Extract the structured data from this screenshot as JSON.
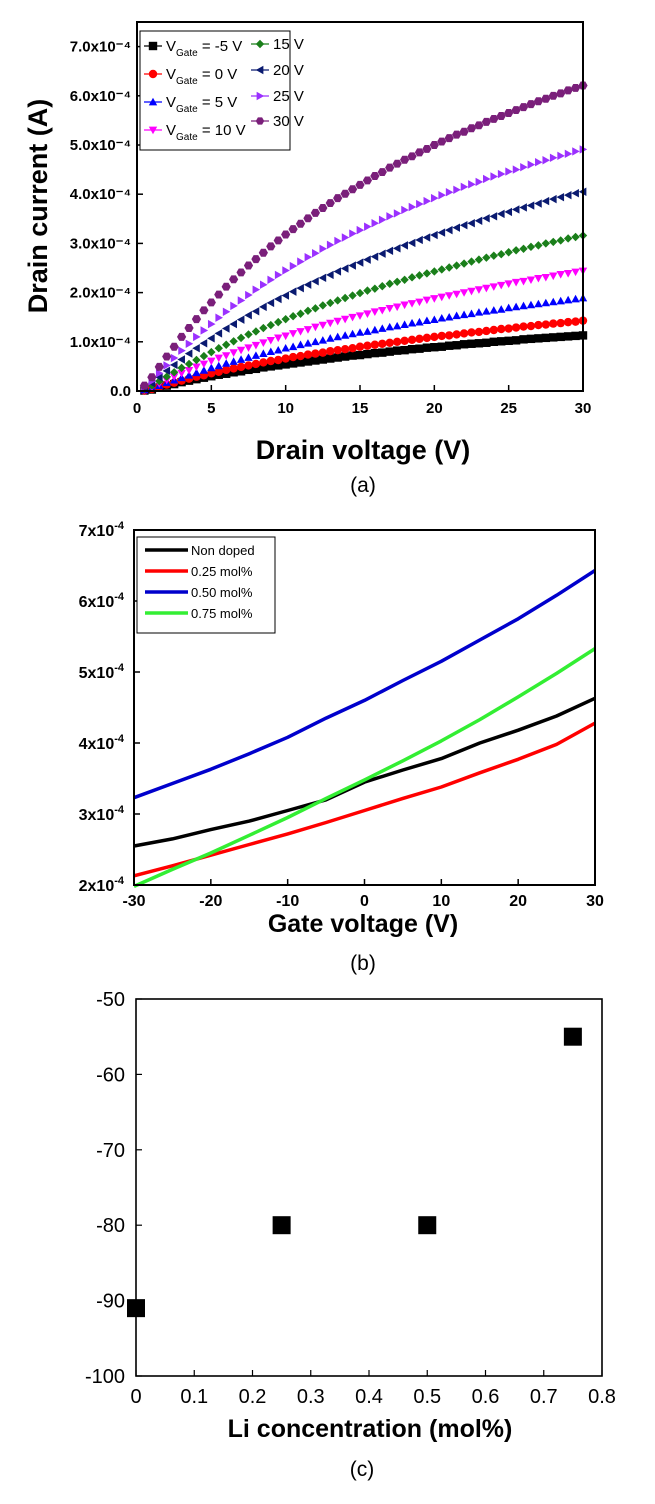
{
  "chart_data": [
    {
      "type": "scatter",
      "caption": "(a)",
      "xlabel": "Drain voltage (V)",
      "ylabel": "Drain current (A)",
      "xlim": [
        0,
        30
      ],
      "ylim": [
        0,
        0.00075
      ],
      "x_ticks": [
        "0",
        "5",
        "10",
        "15",
        "20",
        "25",
        "30"
      ],
      "y_ticks": [
        "0.0",
        "1.0x10⁻⁴",
        "2.0x10⁻⁴",
        "3.0x10⁻⁴",
        "4.0x10⁻⁴",
        "5.0x10⁻⁴",
        "6.0x10⁻⁴",
        "7.0x10⁻⁴"
      ],
      "legend_placement": "top-left",
      "x": [
        0.5,
        1,
        1.5,
        2,
        2.5,
        3,
        3.5,
        4,
        4.5,
        5,
        5.5,
        6,
        6.5,
        7,
        7.5,
        8,
        8.5,
        9,
        9.5,
        10,
        10.5,
        11,
        11.5,
        12,
        12.5,
        13,
        13.5,
        14,
        14.5,
        15,
        15.5,
        16,
        16.5,
        17,
        17.5,
        18,
        18.5,
        19,
        19.5,
        20,
        20.5,
        21,
        21.5,
        22,
        22.5,
        23,
        23.5,
        24,
        24.5,
        25,
        25.5,
        26,
        26.5,
        27,
        27.5,
        28,
        28.5,
        29,
        29.5,
        30
      ],
      "series": [
        {
          "name_main": "V",
          "name_sub": "Gate",
          "name_rest": " = -5 V",
          "color": "#000000",
          "marker": "square",
          "values": [
            1e-06,
            3e-06,
            7e-06,
            1.1e-05,
            1.4e-05,
            1.8e-05,
            2.1e-05,
            2.4e-05,
            2.7e-05,
            3e-05,
            3.3e-05,
            3.5e-05,
            3.8e-05,
            4e-05,
            4.3e-05,
            4.5e-05,
            4.8e-05,
            5e-05,
            5.2e-05,
            5.4e-05,
            5.6e-05,
            5.8e-05,
            6e-05,
            6.2e-05,
            6.4e-05,
            6.6e-05,
            6.8e-05,
            7e-05,
            7.2e-05,
            7.3e-05,
            7.5e-05,
            7.7e-05,
            7.8e-05,
            8e-05,
            8.2e-05,
            8.3e-05,
            8.5e-05,
            8.6e-05,
            8.8e-05,
            8.9e-05,
            9e-05,
            9.2e-05,
            9.3e-05,
            9.5e-05,
            9.6e-05,
            9.7e-05,
            9.8e-05,
            0.0001,
            0.000101,
            0.000102,
            0.000103,
            0.000105,
            0.000106,
            0.000107,
            0.000108,
            0.000109,
            0.00011,
            0.000111,
            0.000112,
            0.000113
          ]
        },
        {
          "name_main": "V",
          "name_sub": "Gate",
          "name_rest": " = 0 V",
          "color": "#ff0000",
          "marker": "circle",
          "values": [
            1e-06,
            4e-06,
            8e-06,
            1.3e-05,
            1.7e-05,
            2.1e-05,
            2.5e-05,
            2.9e-05,
            3.2e-05,
            3.6e-05,
            3.9e-05,
            4.3e-05,
            4.6e-05,
            4.9e-05,
            5.2e-05,
            5.5e-05,
            5.8e-05,
            6.1e-05,
            6.3e-05,
            6.6e-05,
            6.9e-05,
            7.1e-05,
            7.4e-05,
            7.6e-05,
            7.8e-05,
            8.1e-05,
            8.3e-05,
            8.5e-05,
            8.7e-05,
            9e-05,
            9.2e-05,
            9.4e-05,
            9.6e-05,
            9.8e-05,
            0.0001,
            0.000102,
            0.000104,
            0.000106,
            0.000108,
            0.00011,
            0.000112,
            0.000113,
            0.000115,
            0.000117,
            0.000119,
            0.00012,
            0.000122,
            0.000124,
            0.000126,
            0.000127,
            0.000129,
            0.000131,
            0.000132,
            0.000134,
            0.000135,
            0.000137,
            0.000138,
            0.00014,
            0.000141,
            0.000143
          ]
        },
        {
          "name_main": "V",
          "name_sub": "Gate",
          "name_rest": " = 5 V",
          "color": "#0000ff",
          "marker": "triangle-up",
          "values": [
            2e-06,
            6e-06,
            1.1e-05,
            1.7e-05,
            2.2e-05,
            2.7e-05,
            3.2e-05,
            3.7e-05,
            4.2e-05,
            4.7e-05,
            5.1e-05,
            5.6e-05,
            6e-05,
            6.4e-05,
            6.8e-05,
            7.2e-05,
            7.6e-05,
            8e-05,
            8.3e-05,
            8.7e-05,
            9e-05,
            9.4e-05,
            9.7e-05,
            0.0001,
            0.000103,
            0.000107,
            0.00011,
            0.000113,
            0.000116,
            0.000119,
            0.000121,
            0.000124,
            0.000127,
            0.00013,
            0.000132,
            0.000135,
            0.000138,
            0.00014,
            0.000143,
            0.000145,
            0.000148,
            0.00015,
            0.000153,
            0.000155,
            0.000157,
            0.00016,
            0.000162,
            0.000164,
            0.000166,
            0.000169,
            0.000171,
            0.000173,
            0.000175,
            0.000177,
            0.000179,
            0.000181,
            0.000183,
            0.000185,
            0.000187,
            0.000189
          ]
        },
        {
          "name_main": "V",
          "name_sub": "Gate",
          "name_rest": " = 10 V",
          "color": "#ff00ff",
          "marker": "triangle-down",
          "values": [
            3e-06,
            8e-06,
            1.5e-05,
            2.2e-05,
            2.9e-05,
            3.6e-05,
            4.2e-05,
            4.9e-05,
            5.5e-05,
            6.1e-05,
            6.7e-05,
            7.2e-05,
            7.8e-05,
            8.3e-05,
            8.8e-05,
            9.3e-05,
            9.8e-05,
            0.000103,
            0.000108,
            0.000112,
            0.000117,
            0.000121,
            0.000125,
            0.00013,
            0.000134,
            0.000138,
            0.000142,
            0.000146,
            0.00015,
            0.000153,
            0.000157,
            0.000161,
            0.000164,
            0.000168,
            0.000171,
            0.000175,
            0.000178,
            0.000181,
            0.000185,
            0.000188,
            0.000191,
            0.000194,
            0.000197,
            0.0002,
            0.000203,
            0.000206,
            0.000209,
            0.000212,
            0.000215,
            0.000218,
            0.000221,
            0.000223,
            0.000226,
            0.000229,
            0.000231,
            0.000234,
            0.000237,
            0.000239,
            0.000242,
            0.000244
          ]
        },
        {
          "name_main": "15 V",
          "name_sub": "",
          "name_rest": "",
          "color": "#1a7f1a",
          "marker": "diamond",
          "values": [
            4e-06,
            1.1e-05,
            2e-05,
            2.9e-05,
            3.8e-05,
            4.7e-05,
            5.5e-05,
            6.3e-05,
            7.1e-05,
            7.9e-05,
            8.7e-05,
            9.4e-05,
            0.000101,
            0.000108,
            0.000115,
            0.000121,
            0.000128,
            0.000134,
            0.00014,
            0.000146,
            0.000152,
            0.000157,
            0.000163,
            0.000168,
            0.000174,
            0.000179,
            0.000184,
            0.000189,
            0.000194,
            0.000199,
            0.000204,
            0.000208,
            0.000213,
            0.000218,
            0.000222,
            0.000226,
            0.000231,
            0.000235,
            0.000239,
            0.000243,
            0.000247,
            0.000251,
            0.000255,
            0.000259,
            0.000263,
            0.000267,
            0.000271,
            0.000275,
            0.000278,
            0.000282,
            0.000286,
            0.000289,
            0.000293,
            0.000296,
            0.0003,
            0.000303,
            0.000306,
            0.00031,
            0.000313,
            0.000316
          ]
        },
        {
          "name_main": "20 V",
          "name_sub": "",
          "name_rest": "",
          "color": "#0a1a70",
          "marker": "triangle-left",
          "values": [
            6e-06,
            1.6e-05,
            2.8e-05,
            4.1e-05,
            5.3e-05,
            6.4e-05,
            7.6e-05,
            8.7e-05,
            9.7e-05,
            0.000107,
            0.000117,
            0.000127,
            0.000136,
            0.000145,
            0.000154,
            0.000162,
            0.000171,
            0.000179,
            0.000187,
            0.000194,
            0.000202,
            0.000209,
            0.000216,
            0.000223,
            0.00023,
            0.000236,
            0.000243,
            0.000249,
            0.000255,
            0.000261,
            0.000267,
            0.000273,
            0.000279,
            0.000285,
            0.00029,
            0.000296,
            0.000301,
            0.000307,
            0.000312,
            0.000317,
            0.000322,
            0.000327,
            0.000332,
            0.000337,
            0.000341,
            0.000346,
            0.000351,
            0.000355,
            0.00036,
            0.000364,
            0.000369,
            0.000373,
            0.000377,
            0.000381,
            0.000386,
            0.00039,
            0.000394,
            0.000398,
            0.000402,
            0.000405
          ]
        },
        {
          "name_main": "25 V",
          "name_sub": "",
          "name_rest": "",
          "color": "#9b30ff",
          "marker": "triangle-right",
          "values": [
            8e-06,
            2e-05,
            3.6e-05,
            5.2e-05,
            6.7e-05,
            8.2e-05,
            9.6e-05,
            0.00011,
            0.000123,
            0.000136,
            0.000149,
            0.000161,
            0.000173,
            0.000184,
            0.000195,
            0.000206,
            0.000216,
            0.000226,
            0.000236,
            0.000245,
            0.000254,
            0.000263,
            0.000272,
            0.00028,
            0.000289,
            0.000297,
            0.000305,
            0.000312,
            0.00032,
            0.000327,
            0.000334,
            0.000341,
            0.000348,
            0.000355,
            0.000361,
            0.000368,
            0.000374,
            0.00038,
            0.000386,
            0.000392,
            0.000398,
            0.000404,
            0.000409,
            0.000415,
            0.00042,
            0.000425,
            0.000431,
            0.000436,
            0.000441,
            0.000446,
            0.00045,
            0.000455,
            0.00046,
            0.000465,
            0.000469,
            0.000474,
            0.000478,
            0.000482,
            0.000487,
            0.000491
          ]
        },
        {
          "name_main": "30 V",
          "name_sub": "",
          "name_rest": "",
          "color": "#7a1f7a",
          "marker": "hexagon",
          "values": [
            1.1e-05,
            2.8e-05,
            4.9e-05,
            7e-05,
            9e-05,
            0.00011,
            0.000128,
            0.000146,
            0.000164,
            0.00018,
            0.000196,
            0.000212,
            0.000227,
            0.000241,
            0.000255,
            0.000268,
            0.000281,
            0.000294,
            0.000306,
            0.000318,
            0.000329,
            0.00034,
            0.000351,
            0.000362,
            0.000372,
            0.000382,
            0.000392,
            0.000401,
            0.00041,
            0.000419,
            0.000428,
            0.000437,
            0.000445,
            0.000454,
            0.000462,
            0.00047,
            0.000477,
            0.000485,
            0.000492,
            0.0005,
            0.000507,
            0.000514,
            0.000521,
            0.000527,
            0.000534,
            0.00054,
            0.000547,
            0.000553,
            0.000559,
            0.000565,
            0.000571,
            0.000577,
            0.000583,
            0.000589,
            0.000594,
            0.0006,
            0.000605,
            0.000611,
            0.000616,
            0.000621
          ]
        }
      ]
    },
    {
      "type": "line",
      "caption": "(b)",
      "xlabel": "Gate voltage (V)",
      "ylabel": "",
      "xlim": [
        -30,
        30
      ],
      "ylim": [
        0.0002,
        0.0007
      ],
      "x_ticks": [
        "-30",
        "-20",
        "-10",
        "0",
        "10",
        "20",
        "30"
      ],
      "y_ticks": [
        {
          "mant": "2x10",
          "exp": "-4"
        },
        {
          "mant": "3x10",
          "exp": "-4"
        },
        {
          "mant": "4x10",
          "exp": "-4"
        },
        {
          "mant": "5x10",
          "exp": "-4"
        },
        {
          "mant": "6x10",
          "exp": "-4"
        },
        {
          "mant": "7x10",
          "exp": "-4"
        }
      ],
      "legend_placement": "top-left",
      "x": [
        -30,
        -25,
        -20,
        -15,
        -10,
        -5,
        0,
        5,
        10,
        15,
        20,
        25,
        30
      ],
      "series": [
        {
          "name": "Non doped",
          "color": "#000000",
          "text_color": "#000000",
          "values": [
            0.000255,
            0.000265,
            0.000278,
            0.00029,
            0.000305,
            0.00032,
            0.000345,
            0.000362,
            0.000378,
            0.0004,
            0.000418,
            0.000438,
            0.000463
          ]
        },
        {
          "name": "0.25 mol%",
          "color": "#ff0000",
          "text_color": "#ff0000",
          "values": [
            0.000213,
            0.000227,
            0.000242,
            0.000257,
            0.000272,
            0.000288,
            0.000305,
            0.000322,
            0.000338,
            0.000358,
            0.000377,
            0.000398,
            0.000428
          ]
        },
        {
          "name": "0.50 mol%",
          "color": "#0000cc",
          "text_color": "#0000cc",
          "values": [
            0.000323,
            0.000343,
            0.000363,
            0.000385,
            0.000408,
            0.000435,
            0.00046,
            0.000488,
            0.000515,
            0.000545,
            0.000575,
            0.000608,
            0.000643
          ]
        },
        {
          "name": "0.75 mol%",
          "color": "#33ee33",
          "text_color": "#33cc33",
          "values": [
            0.000198,
            0.000222,
            0.000245,
            0.00027,
            0.000295,
            0.000322,
            0.000348,
            0.000375,
            0.000403,
            0.000433,
            0.000465,
            0.000498,
            0.000533
          ]
        }
      ]
    },
    {
      "type": "scatter",
      "caption": "(c)",
      "xlabel": "Li concentration (mol%)",
      "ylabel": "",
      "xlim": [
        0,
        0.8
      ],
      "ylim": [
        -100,
        -50
      ],
      "x_ticks": [
        "0",
        "0.1",
        "0.2",
        "0.3",
        "0.4",
        "0.5",
        "0.6",
        "0.7",
        "0.8"
      ],
      "y_ticks": [
        "-100",
        "-90",
        "-80",
        "-70",
        "-60",
        "-50"
      ],
      "series": [
        {
          "color": "#000000",
          "marker": "square",
          "points": [
            [
              0.0,
              -91
            ],
            [
              0.25,
              -80
            ],
            [
              0.5,
              -80
            ],
            [
              0.75,
              -55
            ]
          ]
        }
      ]
    }
  ]
}
